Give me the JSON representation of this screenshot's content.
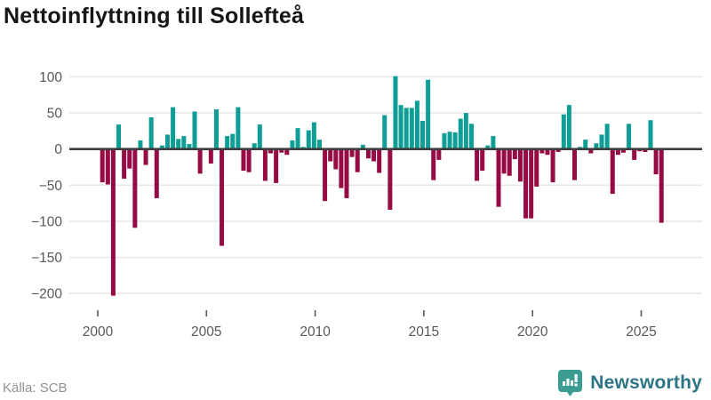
{
  "title": "Nettoinflyttning till Sollefteå",
  "source": "Källa: SCB",
  "logo": {
    "brand": "Newsworthy",
    "icon": "newsworthy-speech-bubble-chart-icon"
  },
  "colors": {
    "positive": "#0f9e95",
    "negative": "#970b45",
    "axis": "#3d3d3d",
    "grid": "#e8e8e8",
    "tick_label": "#595959",
    "title": "#161616",
    "source": "#929292",
    "brand_icon": "#3b9c94",
    "brand_text": "#2d7485"
  },
  "chart_data": {
    "type": "bar",
    "title": "Nettoinflyttning till Sollefteå",
    "xlabel": "",
    "ylabel": "",
    "period": "quarterly",
    "start_year": 2000,
    "values": [
      -46,
      -49,
      -203,
      34,
      -41,
      -27,
      -109,
      12,
      -22,
      44,
      -68,
      5,
      20,
      58,
      14,
      18,
      7,
      52,
      -34,
      0,
      -20,
      55,
      -134,
      18,
      21,
      58,
      -30,
      -32,
      8,
      34,
      -44,
      -6,
      -47,
      -5,
      -8,
      12,
      29,
      3,
      26,
      37,
      13,
      -72,
      -17,
      -28,
      -54,
      -68,
      -11,
      -32,
      6,
      -13,
      -17,
      -33,
      47,
      -84,
      101,
      61,
      57,
      57,
      67,
      39,
      96,
      -43,
      -15,
      22,
      24,
      23,
      42,
      50,
      35,
      -44,
      -30,
      5,
      18,
      -80,
      -34,
      -37,
      -14,
      -45,
      -96,
      -96,
      -52,
      -6,
      -8,
      -46,
      -4,
      48,
      61,
      -43,
      3,
      13,
      -6,
      8,
      20,
      35,
      -62,
      -8,
      -5,
      35,
      -15,
      -3,
      -4,
      40,
      -35,
      -102
    ],
    "xticks": [
      2000,
      2005,
      2010,
      2015,
      2020,
      2025
    ],
    "yticks": [
      100,
      50,
      0,
      -50,
      -100,
      -150,
      -200
    ],
    "ylim": [
      -215,
      115
    ],
    "grid": true,
    "legend": "none"
  }
}
